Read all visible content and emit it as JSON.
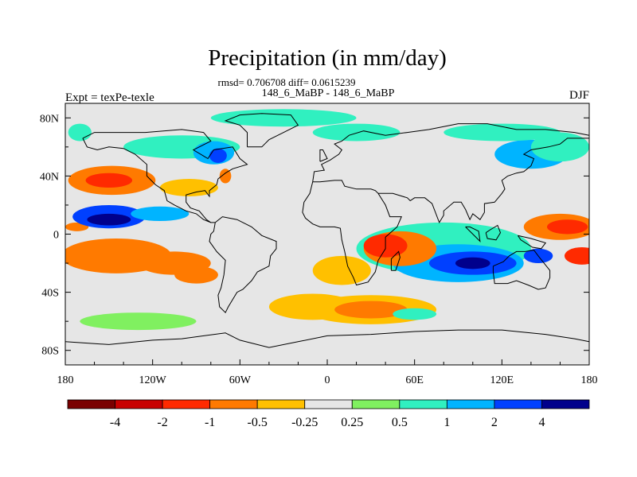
{
  "chart_data": {
    "type": "heatmap",
    "title": "Precipitation (in mm/day)",
    "subtitle": "rmsd= 0.706708 diff= 0.0615239",
    "experiment_names": "148_6_MaBP - 148_6_MaBP",
    "left_label": "Expt = texPe-texle",
    "right_label": "DJF",
    "x_ticks": [
      "180",
      "120W",
      "60W",
      "0",
      "60E",
      "120E",
      "180"
    ],
    "y_ticks": [
      "80N",
      "40N",
      "0",
      "40S",
      "80S"
    ],
    "xlim": [
      -180,
      180
    ],
    "ylim": [
      -90,
      90
    ],
    "colorbar_labels": [
      "-4",
      "-2",
      "-1",
      "-0.5",
      "-0.25",
      "0.25",
      "0.5",
      "1",
      "2",
      "4"
    ],
    "colorbar_colors": [
      "#7a0000",
      "#c80000",
      "#ff2a00",
      "#ff7a00",
      "#ffc000",
      "#e6e6e6",
      "#80f060",
      "#30f0c0",
      "#00b4ff",
      "#0040ff",
      "#00008c"
    ],
    "background_color": "#e6e6e6",
    "regions": [
      {
        "lon": -158,
        "lat": -14,
        "rx": 22,
        "ry": 5,
        "level": 1
      },
      {
        "lon": -150,
        "lat": -14,
        "rx": 30,
        "ry": 9,
        "level": 2
      },
      {
        "lon": -145,
        "lat": -15,
        "rx": 38,
        "ry": 12,
        "level": 3
      },
      {
        "lon": -105,
        "lat": -20,
        "rx": 25,
        "ry": 8,
        "level": 3
      },
      {
        "lon": -90,
        "lat": -28,
        "rx": 15,
        "ry": 6,
        "level": 3
      },
      {
        "lon": -148,
        "lat": 37,
        "rx": 30,
        "ry": 10,
        "level": 3
      },
      {
        "lon": -150,
        "lat": 37,
        "rx": 16,
        "ry": 5,
        "level": 2
      },
      {
        "lon": -95,
        "lat": 32,
        "rx": 20,
        "ry": 6,
        "level": 4
      },
      {
        "lon": -70,
        "lat": 40,
        "rx": 4,
        "ry": 5,
        "level": 3
      },
      {
        "lon": -172,
        "lat": 5,
        "rx": 8,
        "ry": 3,
        "level": 3
      },
      {
        "lon": -150,
        "lat": 12,
        "rx": 25,
        "ry": 8,
        "level": 9
      },
      {
        "lon": -150,
        "lat": 10,
        "rx": 15,
        "ry": 4,
        "level": 10
      },
      {
        "lon": -115,
        "lat": 14,
        "rx": 20,
        "ry": 5,
        "level": 8
      },
      {
        "lon": -100,
        "lat": 60,
        "rx": 40,
        "ry": 8,
        "level": 7
      },
      {
        "lon": -78,
        "lat": 56,
        "rx": 14,
        "ry": 8,
        "level": 8
      },
      {
        "lon": -75,
        "lat": 54,
        "rx": 6,
        "ry": 5,
        "level": 9
      },
      {
        "lon": -30,
        "lat": 80,
        "rx": 50,
        "ry": 6,
        "level": 7
      },
      {
        "lon": 20,
        "lat": 70,
        "rx": 30,
        "ry": 6,
        "level": 7
      },
      {
        "lon": -170,
        "lat": 70,
        "rx": 8,
        "ry": 6,
        "level": 7
      },
      {
        "lon": 140,
        "lat": 55,
        "rx": 25,
        "ry": 10,
        "level": 8
      },
      {
        "lon": 160,
        "lat": 60,
        "rx": 20,
        "ry": 10,
        "level": 7
      },
      {
        "lon": 120,
        "lat": 70,
        "rx": 40,
        "ry": 6,
        "level": 7
      },
      {
        "lon": 80,
        "lat": -10,
        "rx": 60,
        "ry": 18,
        "level": 7
      },
      {
        "lon": 90,
        "lat": -20,
        "rx": 45,
        "ry": 13,
        "level": 8
      },
      {
        "lon": 100,
        "lat": -20,
        "rx": 30,
        "ry": 8,
        "level": 9
      },
      {
        "lon": 100,
        "lat": -20,
        "rx": 12,
        "ry": 4,
        "level": 10
      },
      {
        "lon": 145,
        "lat": -15,
        "rx": 10,
        "ry": 5,
        "level": 9
      },
      {
        "lon": 50,
        "lat": -10,
        "rx": 25,
        "ry": 12,
        "level": 3
      },
      {
        "lon": 40,
        "lat": -8,
        "rx": 15,
        "ry": 8,
        "level": 2
      },
      {
        "lon": 10,
        "lat": -25,
        "rx": 20,
        "ry": 10,
        "level": 4
      },
      {
        "lon": 160,
        "lat": 5,
        "rx": 25,
        "ry": 9,
        "level": 3
      },
      {
        "lon": 165,
        "lat": 5,
        "rx": 14,
        "ry": 5,
        "level": 2
      },
      {
        "lon": 175,
        "lat": -15,
        "rx": 12,
        "ry": 6,
        "level": 2
      },
      {
        "lon": -10,
        "lat": -50,
        "rx": 30,
        "ry": 9,
        "level": 4
      },
      {
        "lon": 30,
        "lat": -52,
        "rx": 45,
        "ry": 10,
        "level": 4
      },
      {
        "lon": 30,
        "lat": -52,
        "rx": 25,
        "ry": 6,
        "level": 3
      },
      {
        "lon": -130,
        "lat": -60,
        "rx": 40,
        "ry": 6,
        "level": 6
      },
      {
        "lon": 60,
        "lat": -55,
        "rx": 15,
        "ry": 4,
        "level": 7
      }
    ]
  }
}
